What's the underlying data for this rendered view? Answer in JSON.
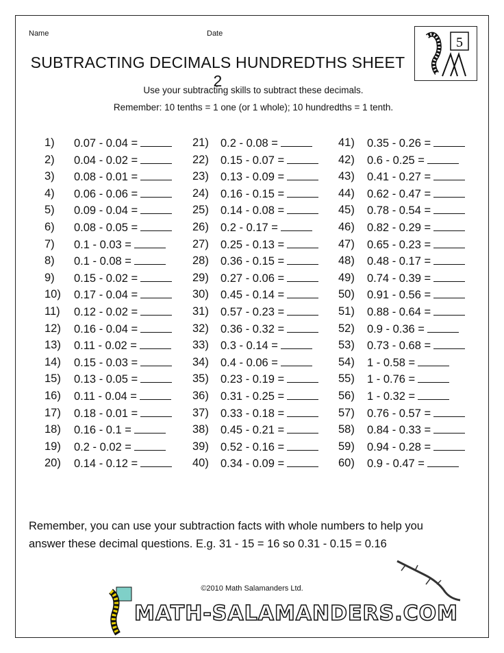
{
  "header": {
    "name_label": "Name",
    "date_label": "Date",
    "title": "SUBTRACTING DECIMALS HUNDREDTHS SHEET 2",
    "logo_grade": "5"
  },
  "instructions": [
    "Use your subtracting skills to subtract these decimals.",
    "Remember: 10 tenths = 1 one (or 1 whole); 10 hundredths = 1 tenth."
  ],
  "problems": [
    [
      "1)",
      "0.07 - 0.04 ="
    ],
    [
      "2)",
      "0.04 - 0.02 ="
    ],
    [
      "3)",
      "0.08 - 0.01 ="
    ],
    [
      "4)",
      "0.06 - 0.06 ="
    ],
    [
      "5)",
      "0.09 - 0.04 ="
    ],
    [
      "6)",
      "0.08 - 0.05 ="
    ],
    [
      "7)",
      "0.1 - 0.03 ="
    ],
    [
      "8)",
      "0.1 - 0.08 ="
    ],
    [
      "9)",
      "0.15 - 0.02 ="
    ],
    [
      "10)",
      "0.17 - 0.04 ="
    ],
    [
      "11)",
      "0.12 - 0.02 ="
    ],
    [
      "12)",
      "0.16 - 0.04 ="
    ],
    [
      "13)",
      "0.11 - 0.02 ="
    ],
    [
      "14)",
      "0.15 - 0.03 ="
    ],
    [
      "15)",
      "0.13 - 0.05 ="
    ],
    [
      "16)",
      "0.11 - 0.04 ="
    ],
    [
      "17)",
      "0.18 - 0.01 ="
    ],
    [
      "18)",
      "0.16 - 0.1 ="
    ],
    [
      "19)",
      "0.2 - 0.02 ="
    ],
    [
      "20)",
      "0.14 - 0.12 ="
    ],
    [
      "21)",
      "0.2 - 0.08 ="
    ],
    [
      "22)",
      "0.15 - 0.07 ="
    ],
    [
      "23)",
      "0.13 - 0.09 ="
    ],
    [
      "24)",
      "0.16 - 0.15 ="
    ],
    [
      "25)",
      "0.14 - 0.08 ="
    ],
    [
      "26)",
      "0.2 - 0.17 ="
    ],
    [
      "27)",
      "0.25 - 0.13 ="
    ],
    [
      "28)",
      "0.36 - 0.15 ="
    ],
    [
      "29)",
      "0.27 - 0.06 ="
    ],
    [
      "30)",
      "0.45 - 0.14 ="
    ],
    [
      "31)",
      "0.57 - 0.23 ="
    ],
    [
      "32)",
      "0.36 - 0.32 ="
    ],
    [
      "33)",
      "0.3 - 0.14 ="
    ],
    [
      "34)",
      "0.4 - 0.06 ="
    ],
    [
      "35)",
      "0.23 - 0.19 ="
    ],
    [
      "36)",
      "0.31 - 0.25 ="
    ],
    [
      "37)",
      "0.33 - 0.18 ="
    ],
    [
      "38)",
      "0.45 - 0.21 ="
    ],
    [
      "39)",
      "0.52 - 0.16 ="
    ],
    [
      "40)",
      "0.34 - 0.09 ="
    ],
    [
      "41)",
      "0.35 - 0.26 ="
    ],
    [
      "42)",
      "0.6 - 0.25 ="
    ],
    [
      "43)",
      "0.41 - 0.27 ="
    ],
    [
      "44)",
      "0.62 - 0.47 ="
    ],
    [
      "45)",
      "0.78 - 0.54 ="
    ],
    [
      "46)",
      "0.82 - 0.29 ="
    ],
    [
      "47)",
      "0.65 - 0.23 ="
    ],
    [
      "48)",
      "0.48 - 0.17 ="
    ],
    [
      "49)",
      "0.74 - 0.39 ="
    ],
    [
      "50)",
      "0.91 - 0.56 ="
    ],
    [
      "51)",
      "0.88 - 0.64 ="
    ],
    [
      "52)",
      "0.9 - 0.36 ="
    ],
    [
      "53)",
      "0.73 - 0.68 ="
    ],
    [
      "54)",
      "1 - 0.58 ="
    ],
    [
      "55)",
      "1 - 0.76 ="
    ],
    [
      "56)",
      "1 - 0.32 ="
    ],
    [
      "57)",
      "0.76 - 0.57 ="
    ],
    [
      "58)",
      "0.84 - 0.33 ="
    ],
    [
      "59)",
      "0.94 - 0.28 ="
    ],
    [
      "60)",
      "0.9 - 0.47 ="
    ]
  ],
  "footer": {
    "note_lines": [
      "Remember, you can use your subtraction facts with whole numbers to help you",
      "answer these decimal questions. E.g. 31 - 15 = 16 so 0.31 - 0.15 = 0.16"
    ],
    "copyright": "©2010 Math Salamanders Ltd.",
    "brand": "MATH-SALAMANDERS.COM"
  }
}
